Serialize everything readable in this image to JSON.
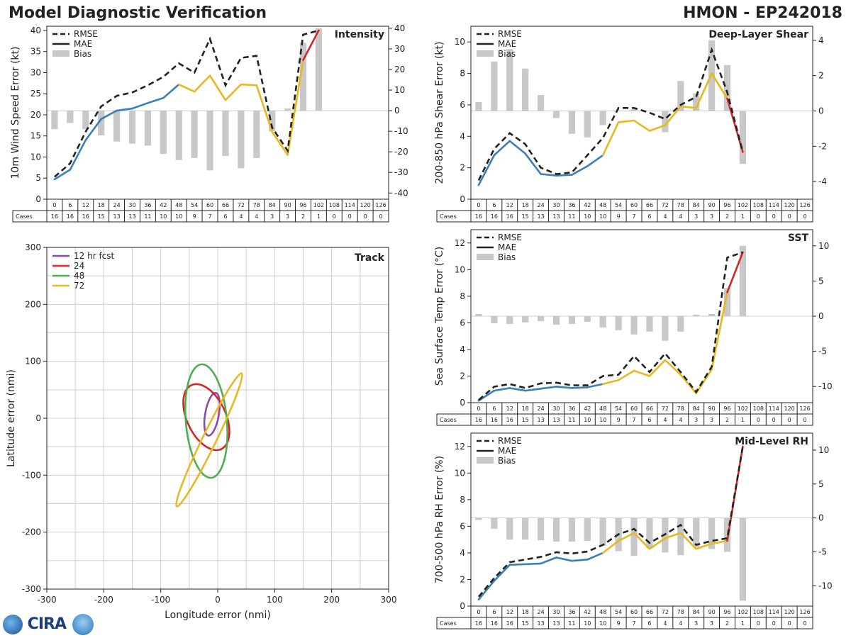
{
  "header": {
    "title": "Model Diagnostic Verification",
    "storm": "HMON - EP242018"
  },
  "logo": {
    "text": "CIRA"
  },
  "colors": {
    "rmse": "#222222",
    "mae_early": "#3a7fb8",
    "mae_mid": "#e8b820",
    "mae_late": "#d62728",
    "bias": "#c8c8c8"
  },
  "chart_data": [
    {
      "id": "intensity",
      "type": "line",
      "title": "Intensity",
      "ylabel": "10m Wind Speed Error (kt)",
      "ylim": [
        0,
        41
      ],
      "yticks": [
        0,
        5,
        10,
        15,
        20,
        25,
        30,
        35,
        40
      ],
      "y2lim": [
        -43,
        41
      ],
      "y2ticks": [
        -40,
        -30,
        -20,
        -10,
        0,
        10,
        20,
        30,
        40
      ],
      "legend": [
        "RMSE",
        "MAE",
        "Bias"
      ],
      "hours": [
        0,
        6,
        12,
        18,
        24,
        30,
        36,
        42,
        48,
        54,
        60,
        66,
        72,
        78,
        84,
        90,
        96,
        102,
        108,
        114,
        120,
        126
      ],
      "cases": [
        16,
        16,
        16,
        15,
        13,
        13,
        11,
        10,
        10,
        9,
        7,
        6,
        4,
        4,
        3,
        3,
        2,
        1,
        0,
        0,
        0,
        0
      ],
      "rmse": [
        5.3,
        8.5,
        16,
        22,
        24.5,
        25.3,
        27,
        29,
        32.2,
        30,
        38,
        27,
        33.5,
        34,
        17,
        11.5,
        39,
        40
      ],
      "mae": [
        4.7,
        7,
        14,
        19,
        21,
        21.5,
        22.8,
        24,
        27.2,
        25.5,
        29.3,
        23.5,
        27.2,
        27,
        16,
        10.5,
        33,
        40
      ],
      "bias": [
        -9,
        -6,
        -9,
        -12,
        -15,
        -16,
        -17,
        -21,
        -24,
        -23,
        -29,
        -22,
        -28,
        -23,
        -10,
        1,
        33,
        40
      ]
    },
    {
      "id": "shear",
      "type": "line",
      "title": "Deep-Layer Shear",
      "ylabel": "200-850 hPa Shear Error (kt)",
      "ylim": [
        0,
        11
      ],
      "yticks": [
        0,
        2,
        4,
        6,
        8,
        10
      ],
      "y2lim": [
        -5,
        4.8
      ],
      "y2ticks": [
        -4,
        -2,
        0,
        2,
        4
      ],
      "legend": [
        "RMSE",
        "MAE",
        "Bias"
      ],
      "hours": [
        0,
        6,
        12,
        18,
        24,
        30,
        36,
        42,
        48,
        54,
        60,
        66,
        72,
        78,
        84,
        90,
        96,
        102,
        108,
        114,
        120,
        126
      ],
      "cases": [
        16,
        16,
        16,
        15,
        13,
        13,
        11,
        10,
        10,
        9,
        7,
        6,
        4,
        4,
        3,
        3,
        2,
        1,
        0,
        0,
        0,
        0
      ],
      "rmse": [
        1.2,
        3.2,
        4.2,
        3.5,
        2,
        1.6,
        1.7,
        2.8,
        3.9,
        5.8,
        5.8,
        5.5,
        5.1,
        6,
        6.5,
        9.5,
        6.8,
        3
      ],
      "mae": [
        0.9,
        2.8,
        3.7,
        2.9,
        1.6,
        1.5,
        1.55,
        2.1,
        2.8,
        4.9,
        5,
        4.35,
        4.7,
        5.9,
        5.8,
        8,
        6.4,
        3
      ],
      "bias": [
        0.5,
        2.8,
        3.5,
        2.4,
        0.9,
        -0.4,
        -1.3,
        -1.5,
        -0.8,
        0,
        0.1,
        0,
        -1.2,
        1.7,
        1,
        4,
        2.6,
        -3
      ]
    },
    {
      "id": "sst",
      "type": "line",
      "title": "SST",
      "ylabel": "Sea Surface Temp Error (°C)",
      "ylim": [
        0,
        13
      ],
      "yticks": [
        0,
        2,
        4,
        6,
        8,
        10,
        12
      ],
      "y2lim": [
        -12.3,
        12.3
      ],
      "y2ticks": [
        -10,
        -5,
        0,
        5,
        10
      ],
      "legend": [
        "RMSE",
        "MAE",
        "Bias"
      ],
      "hours": [
        0,
        6,
        12,
        18,
        24,
        30,
        36,
        42,
        48,
        54,
        60,
        66,
        72,
        78,
        84,
        90,
        96,
        102,
        108,
        114,
        120,
        126
      ],
      "cases": [
        16,
        16,
        16,
        15,
        13,
        13,
        11,
        10,
        10,
        9,
        7,
        6,
        4,
        4,
        3,
        3,
        2,
        1,
        0,
        0,
        0,
        0
      ],
      "rmse": [
        0.2,
        1.2,
        1.4,
        1.1,
        1.45,
        1.5,
        1.3,
        1.3,
        2,
        2.1,
        3.5,
        2.3,
        3.7,
        2.3,
        0.8,
        2.7,
        10.9,
        11.3
      ],
      "mae": [
        0.15,
        0.9,
        1.1,
        0.9,
        1.05,
        1.2,
        1.1,
        1.15,
        1.4,
        1.7,
        2.4,
        2,
        3.2,
        2.1,
        0.7,
        2.5,
        8.3,
        11.3
      ],
      "bias": [
        0.3,
        -1,
        -1.1,
        -0.9,
        -0.7,
        -1.2,
        -1.1,
        -0.8,
        -1.6,
        -2,
        -2.6,
        -2.2,
        -3.5,
        -2.2,
        0.2,
        0.3,
        4,
        10
      ]
    },
    {
      "id": "rh",
      "type": "line",
      "title": "Mid-Level RH",
      "ylabel": "700-500 hPa RH Error (%)",
      "ylim": [
        0,
        13
      ],
      "yticks": [
        0,
        2,
        4,
        6,
        8,
        10,
        12
      ],
      "y2lim": [
        -13,
        12.5
      ],
      "y2ticks": [
        -10,
        -5,
        0,
        5,
        10
      ],
      "legend": [
        "RMSE",
        "MAE",
        "Bias"
      ],
      "hours": [
        0,
        6,
        12,
        18,
        24,
        30,
        36,
        42,
        48,
        54,
        60,
        66,
        72,
        78,
        84,
        90,
        96,
        102,
        108,
        114,
        120,
        126
      ],
      "cases": [
        16,
        16,
        16,
        15,
        13,
        13,
        11,
        10,
        10,
        9,
        7,
        6,
        4,
        4,
        3,
        3,
        2,
        1,
        0,
        0,
        0,
        0
      ],
      "rmse": [
        0.7,
        2.1,
        3.3,
        3.5,
        3.7,
        4.05,
        3.95,
        4.1,
        4.6,
        5.4,
        5.8,
        4.75,
        5.4,
        6.1,
        4.6,
        4.9,
        5.1,
        12
      ],
      "mae": [
        0.5,
        1.9,
        3.1,
        3.15,
        3.2,
        3.65,
        3.4,
        3.5,
        4,
        4.9,
        5.5,
        4.3,
        5.1,
        5.5,
        4.3,
        4.7,
        4.9,
        12
      ],
      "bias": [
        -0.3,
        -1.6,
        -3.2,
        -3.2,
        -3.3,
        -3.5,
        -3.5,
        -3.4,
        -4.1,
        -4.9,
        -5.6,
        -4.5,
        -5.1,
        -5.5,
        -4.3,
        -4.6,
        -5,
        -12.2
      ]
    },
    {
      "id": "track",
      "type": "scatter",
      "title": "Track",
      "xlabel": "Longitude error (nmi)",
      "ylabel": "Latitude error (nmi)",
      "xlim": [
        -300,
        300
      ],
      "ylim": [
        -300,
        300
      ],
      "ticks": [
        -300,
        -200,
        -100,
        0,
        100,
        200,
        300
      ],
      "legend": [
        "12 hr fcst",
        "24",
        "48",
        "72"
      ],
      "ellipses": [
        {
          "name": "12 hr fcst",
          "color": "#8e4aa8",
          "cx": -10,
          "cy": 7,
          "a": 38,
          "b": 12,
          "angle_deg": 80
        },
        {
          "name": "24",
          "color": "#d62728",
          "cx": -20,
          "cy": 2,
          "a": 62,
          "b": 34,
          "angle_deg": 115
        },
        {
          "name": "48",
          "color": "#4caf50",
          "cx": -20,
          "cy": -5,
          "a": 100,
          "b": 36,
          "angle_deg": 95
        },
        {
          "name": "72",
          "color": "#e8b820",
          "cx": -15,
          "cy": -38,
          "a": 130,
          "b": 12,
          "angle_deg": 64
        }
      ]
    }
  ]
}
